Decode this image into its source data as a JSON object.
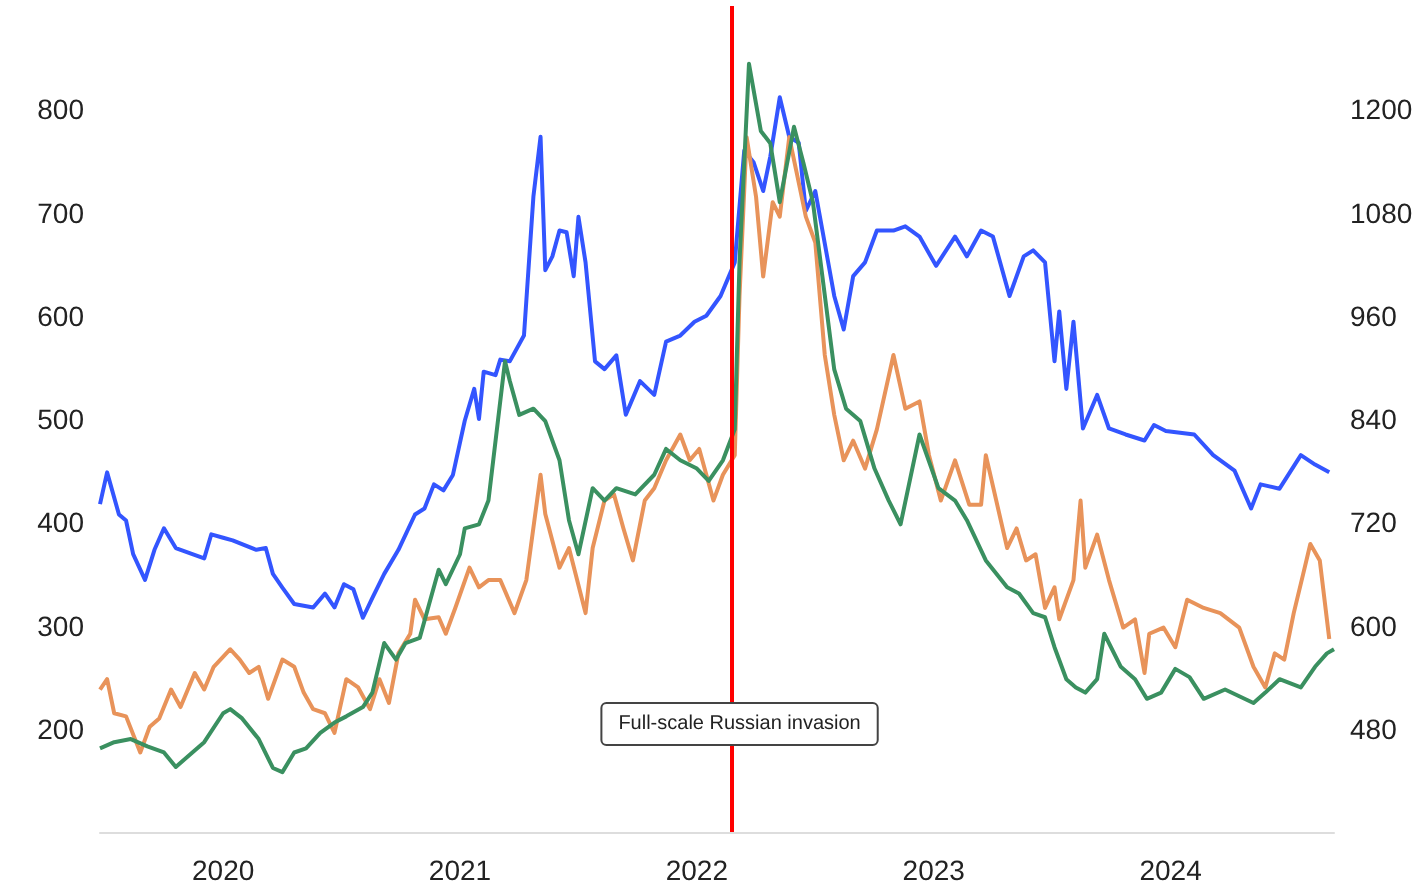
{
  "chart_data": {
    "type": "line",
    "xlim": [
      2019.48,
      2024.69
    ],
    "xticks": [
      2020,
      2021,
      2022,
      2023,
      2024
    ],
    "ylim": [
      100,
      900
    ],
    "yticks": [
      200,
      300,
      400,
      500,
      600,
      700,
      800
    ],
    "y2lim": [
      360,
      1320
    ],
    "y2ticks": [
      480,
      600,
      720,
      840,
      960,
      1080,
      1200
    ],
    "grid": false,
    "marker": "none",
    "ref_lines": [
      {
        "axis": "x",
        "value": 2022.15,
        "label": "Full-scale Russian invasion",
        "color": "#ff0000"
      }
    ],
    "series": [
      {
        "color": "#3355ff",
        "axis": "y2",
        "x": [
          2019.48,
          2019.51,
          2019.56,
          2019.59,
          2019.62,
          2019.67,
          2019.71,
          2019.75,
          2019.8,
          2019.87,
          2019.92,
          2019.95,
          2020.0,
          2020.04,
          2020.14,
          2020.18,
          2020.21,
          2020.25,
          2020.3,
          2020.38,
          2020.43,
          2020.47,
          2020.51,
          2020.55,
          2020.59,
          2020.63,
          2020.68,
          2020.74,
          2020.81,
          2020.85,
          2020.89,
          2020.93,
          2020.97,
          2021.02,
          2021.06,
          2021.08,
          2021.1,
          2021.15,
          2021.17,
          2021.21,
          2021.27,
          2021.31,
          2021.34,
          2021.36,
          2021.39,
          2021.42,
          2021.45,
          2021.48,
          2021.5,
          2021.53,
          2021.57,
          2021.61,
          2021.66,
          2021.7,
          2021.76,
          2021.82,
          2021.87,
          2021.93,
          2021.99,
          2022.04,
          2022.1,
          2022.16,
          2022.2,
          2022.24,
          2022.28,
          2022.31,
          2022.35,
          2022.39,
          2022.43,
          2022.46,
          2022.5,
          2022.58,
          2022.62,
          2022.66,
          2022.71,
          2022.76,
          2022.83,
          2022.88,
          2022.94,
          2023.01,
          2023.09,
          2023.14,
          2023.2,
          2023.25,
          2023.32,
          2023.38,
          2023.42,
          2023.47,
          2023.51,
          2023.53,
          2023.56,
          2023.59,
          2023.63,
          2023.69,
          2023.74,
          2023.81,
          2023.89,
          2023.93,
          2023.98,
          2024.1,
          2024.18,
          2024.27,
          2024.34,
          2024.38,
          2024.46,
          2024.55,
          2024.61,
          2024.67
        ],
        "values": [
          741,
          778,
          729,
          722,
          683,
          653,
          688,
          713,
          690,
          683,
          678,
          706,
          702,
          699,
          688,
          690,
          660,
          644,
          625,
          621,
          637,
          621,
          648,
          642,
          609,
          632,
          660,
          688,
          729,
          736,
          764,
          757,
          775,
          838,
          875,
          840,
          895,
          891,
          909,
          907,
          937,
          1099,
          1168,
          1013,
          1029,
          1059,
          1057,
          1006,
          1075,
          1022,
          907,
          898,
          914,
          845,
          884,
          868,
          930,
          937,
          953,
          960,
          983,
          1022,
          1152,
          1138,
          1105,
          1145,
          1214,
          1168,
          1161,
          1082,
          1105,
          983,
          944,
          1006,
          1022,
          1059,
          1059,
          1064,
          1052,
          1018,
          1052,
          1029,
          1059,
          1052,
          983,
          1029,
          1036,
          1022,
          907,
          965,
          875,
          953,
          829,
          868,
          829,
          822,
          815,
          833,
          826,
          822,
          798,
          780,
          736,
          764,
          759,
          798,
          787,
          778
        ]
      },
      {
        "color": "#e8935a",
        "x": [
          2019.48,
          2019.51,
          2019.54,
          2019.59,
          2019.65,
          2019.69,
          2019.73,
          2019.78,
          2019.82,
          2019.88,
          2019.92,
          2019.96,
          2020.03,
          2020.07,
          2020.11,
          2020.15,
          2020.19,
          2020.25,
          2020.3,
          2020.34,
          2020.38,
          2020.43,
          2020.47,
          2020.52,
          2020.57,
          2020.62,
          2020.66,
          2020.7,
          2020.74,
          2020.79,
          2020.81,
          2020.85,
          2020.91,
          2020.94,
          2020.98,
          2021.04,
          2021.08,
          2021.12,
          2021.17,
          2021.23,
          2021.28,
          2021.34,
          2021.36,
          2021.42,
          2021.46,
          2021.53,
          2021.56,
          2021.61,
          2021.65,
          2021.69,
          2021.73,
          2021.78,
          2021.82,
          2021.87,
          2021.93,
          2021.97,
          2022.01,
          2022.07,
          2022.11,
          2022.16,
          2022.18,
          2022.21,
          2022.25,
          2022.28,
          2022.32,
          2022.35,
          2022.39,
          2022.42,
          2022.46,
          2022.5,
          2022.54,
          2022.58,
          2022.62,
          2022.66,
          2022.71,
          2022.76,
          2022.83,
          2022.88,
          2022.94,
          2022.98,
          2023.03,
          2023.09,
          2023.15,
          2023.2,
          2023.22,
          2023.31,
          2023.35,
          2023.39,
          2023.43,
          2023.47,
          2023.51,
          2023.53,
          2023.59,
          2023.62,
          2023.64,
          2023.69,
          2023.74,
          2023.8,
          2023.85,
          2023.89,
          2023.91,
          2023.97,
          2024.02,
          2024.07,
          2024.14,
          2024.21,
          2024.29,
          2024.35,
          2024.4,
          2024.44,
          2024.48,
          2024.52,
          2024.56,
          2024.59,
          2024.63,
          2024.67
        ],
        "values": [
          238,
          248,
          215,
          212,
          177,
          202,
          210,
          238,
          221,
          254,
          238,
          260,
          277,
          267,
          254,
          260,
          229,
          267,
          260,
          235,
          219,
          215,
          196,
          248,
          240,
          219,
          248,
          225,
          273,
          292,
          325,
          306,
          308,
          292,
          317,
          356,
          337,
          344,
          344,
          312,
          344,
          446,
          408,
          356,
          375,
          312,
          375,
          421,
          427,
          394,
          363,
          421,
          433,
          460,
          485,
          460,
          471,
          421,
          446,
          465,
          619,
          773,
          715,
          638,
          710,
          696,
          773,
          740,
          696,
          671,
          562,
          504,
          460,
          479,
          452,
          490,
          562,
          510,
          517,
          465,
          421,
          460,
          417,
          417,
          465,
          375,
          394,
          363,
          369,
          317,
          337,
          306,
          344,
          421,
          356,
          388,
          344,
          298,
          306,
          254,
          292,
          298,
          279,
          325,
          317,
          312,
          298,
          260,
          240,
          273,
          267,
          312,
          350,
          379,
          363,
          287
        ]
      },
      {
        "color": "#3a9060",
        "x": [
          2019.48,
          2019.54,
          2019.61,
          2019.68,
          2019.75,
          2019.8,
          2019.87,
          2019.92,
          2020.0,
          2020.03,
          2020.08,
          2020.15,
          2020.21,
          2020.25,
          2020.3,
          2020.35,
          2020.41,
          2020.47,
          2020.52,
          2020.59,
          2020.63,
          2020.68,
          2020.73,
          2020.77,
          2020.83,
          2020.87,
          2020.91,
          2020.94,
          2021.0,
          2021.02,
          2021.08,
          2021.12,
          2021.19,
          2021.21,
          2021.25,
          2021.31,
          2021.36,
          2021.42,
          2021.46,
          2021.5,
          2021.56,
          2021.61,
          2021.66,
          2021.74,
          2021.82,
          2021.87,
          2021.93,
          2022.0,
          2022.05,
          2022.11,
          2022.16,
          2022.18,
          2022.22,
          2022.27,
          2022.31,
          2022.35,
          2022.41,
          2022.45,
          2022.49,
          2022.53,
          2022.58,
          2022.63,
          2022.69,
          2022.75,
          2022.81,
          2022.86,
          2022.94,
          2023.02,
          2023.09,
          2023.14,
          2023.22,
          2023.31,
          2023.36,
          2023.42,
          2023.47,
          2023.51,
          2023.56,
          2023.6,
          2023.64,
          2023.69,
          2023.72,
          2023.79,
          2023.85,
          2023.9,
          2023.96,
          2024.02,
          2024.08,
          2024.14,
          2024.23,
          2024.35,
          2024.4,
          2024.46,
          2024.55,
          2024.61,
          2024.66,
          2024.69
        ],
        "values": [
          181,
          187,
          190,
          183,
          177,
          163,
          177,
          187,
          215,
          219,
          210,
          190,
          162,
          158,
          177,
          181,
          196,
          206,
          212,
          221,
          235,
          283,
          267,
          283,
          288,
          321,
          354,
          340,
          369,
          394,
          398,
          421,
          556,
          537,
          504,
          510,
          498,
          460,
          402,
          369,
          433,
          421,
          433,
          427,
          446,
          471,
          460,
          452,
          440,
          460,
          490,
          652,
          844,
          779,
          767,
          710,
          783,
          748,
          710,
          638,
          548,
          510,
          498,
          452,
          421,
          398,
          485,
          433,
          421,
          402,
          363,
          337,
          331,
          312,
          308,
          279,
          248,
          240,
          235,
          248,
          292,
          260,
          248,
          229,
          235,
          258,
          250,
          229,
          238,
          225,
          235,
          248,
          240,
          260,
          273,
          277
        ]
      }
    ]
  }
}
